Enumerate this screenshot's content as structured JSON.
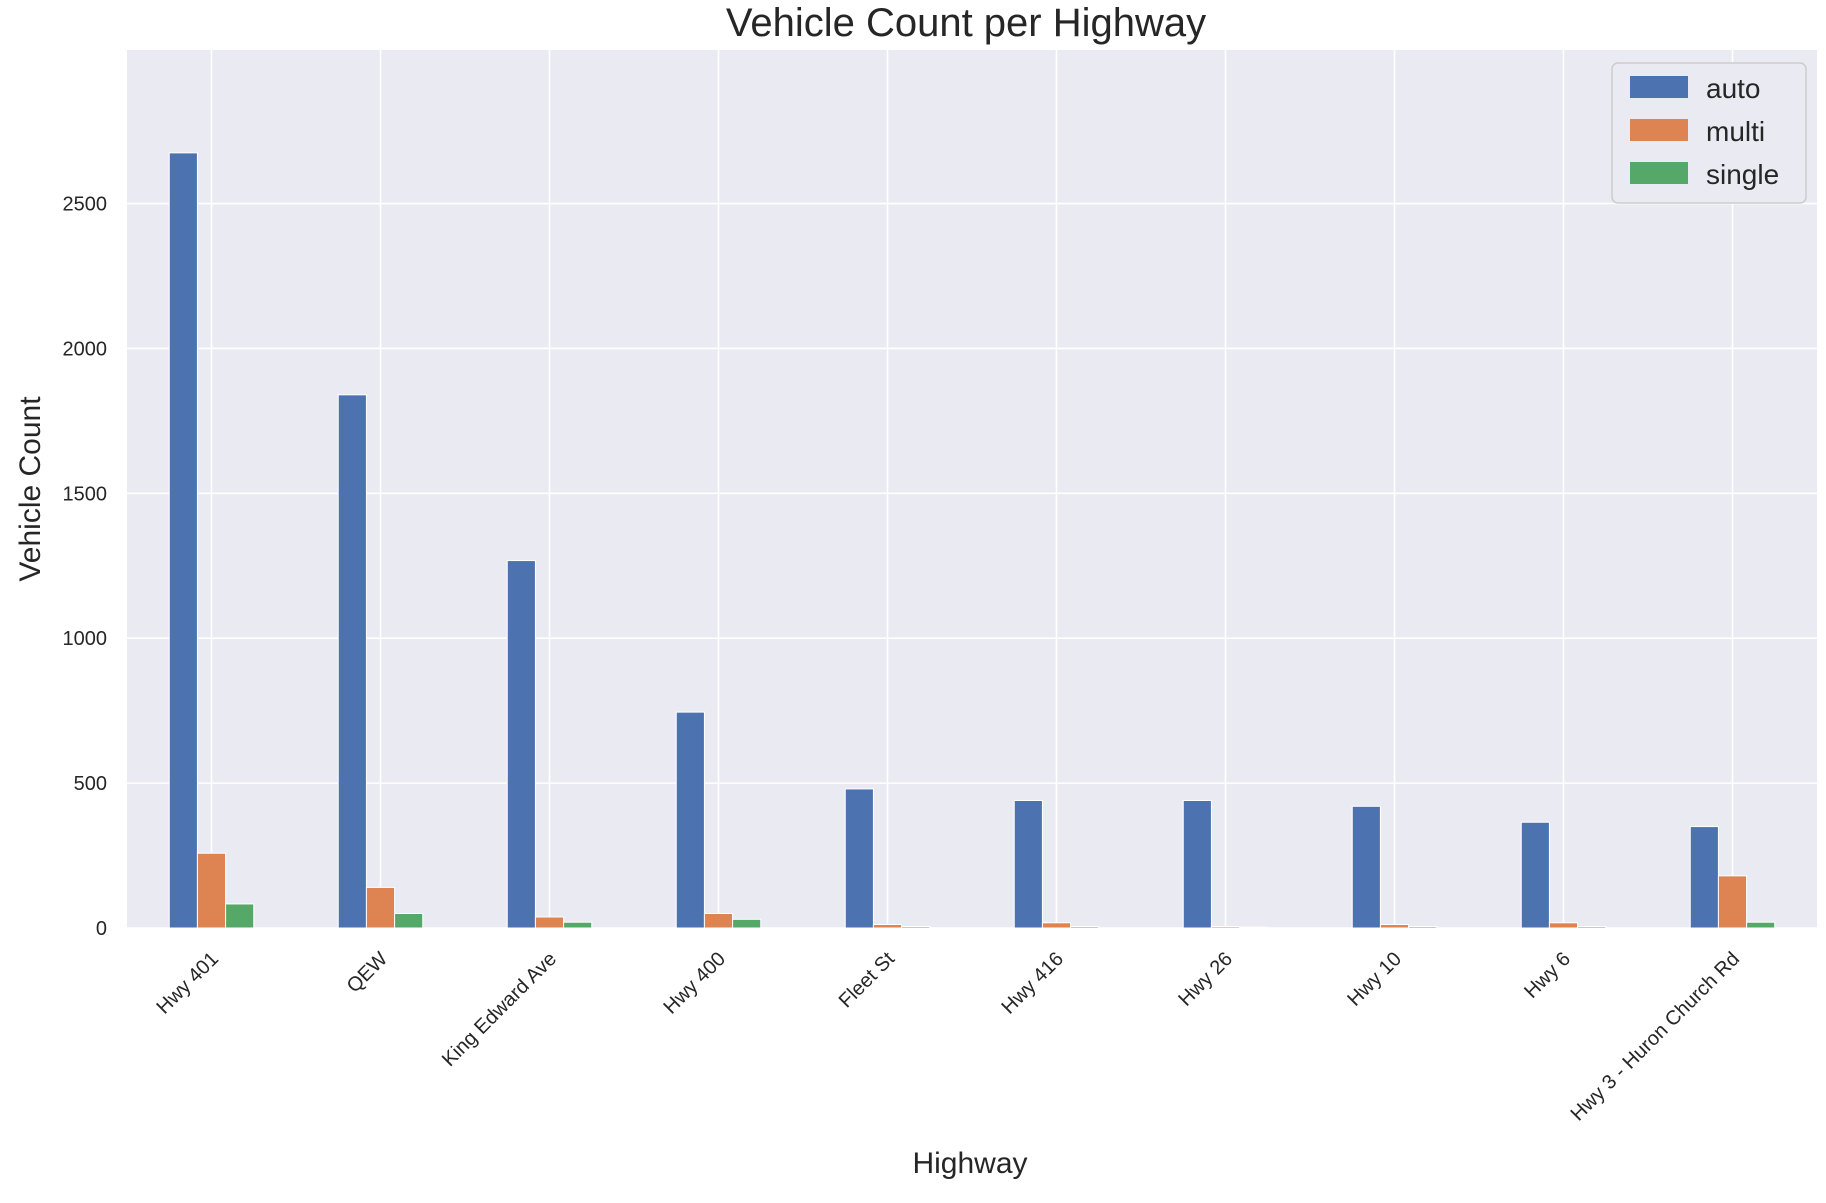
{
  "chart_data": {
    "type": "bar",
    "title": "Vehicle Count per Highway",
    "xlabel": "Highway",
    "ylabel": "Vehicle Count",
    "categories": [
      "Hwy 401",
      "QEW",
      "King Edward Ave",
      "Hwy 400",
      "Fleet St",
      "Hwy 416",
      "Hwy 26",
      "Hwy 10",
      "Hwy 6",
      "Hwy 3 - Huron Church Rd"
    ],
    "series": [
      {
        "name": "auto",
        "color": "#4c72b0",
        "values": [
          2675,
          1840,
          1268,
          745,
          480,
          440,
          440,
          420,
          365,
          350
        ]
      },
      {
        "name": "multi",
        "color": "#dd8452",
        "values": [
          258,
          140,
          38,
          50,
          12,
          18,
          5,
          12,
          18,
          180
        ]
      },
      {
        "name": "single",
        "color": "#55a868",
        "values": [
          83,
          50,
          20,
          30,
          5,
          5,
          3,
          5,
          5,
          20
        ]
      }
    ],
    "yticks": [
      "0",
      "500",
      "1000",
      "1500",
      "2000",
      "2500"
    ],
    "ylim": [
      0,
      3030
    ],
    "grid": true,
    "legend_position": "upper right",
    "background": "#eaeaf2"
  }
}
